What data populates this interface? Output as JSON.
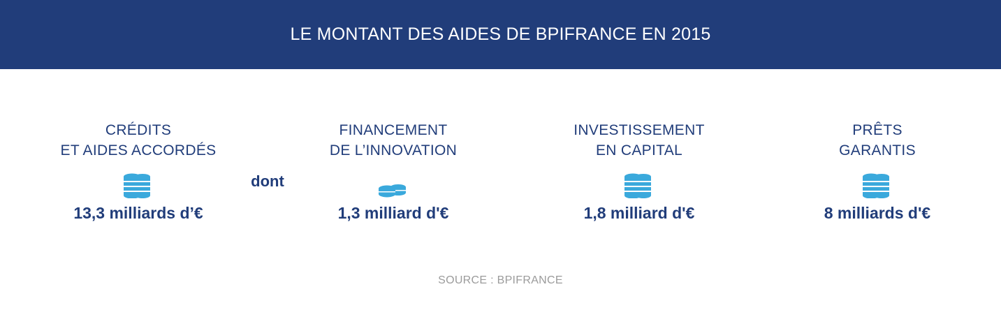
{
  "header": {
    "title": "LE MONTANT DES AIDES DE BPIFRANCE EN 2015"
  },
  "connector": "dont",
  "items": [
    {
      "line1": "CRÉDITS",
      "line2": "ET AIDES ACCORDÉS",
      "value": "13,3 milliards d’€",
      "icon": "coins-stack-icon"
    },
    {
      "line1": "FINANCEMENT",
      "line2": "DE L’INNOVATION",
      "value": "1,3 milliard d'€",
      "icon": "coins-small-icon"
    },
    {
      "line1": "INVESTISSEMENT",
      "line2": "EN CAPITAL",
      "value": "1,8 milliard d'€",
      "icon": "coins-stack-icon"
    },
    {
      "line1": "PRÊTS",
      "line2": "GARANTIS",
      "value": "8 milliards d'€",
      "icon": "coins-stack-icon"
    }
  ],
  "source": "SOURCE : BPIFRANCE",
  "colors": {
    "header_bg": "#213d7a",
    "text": "#213d7a",
    "icon": "#3aa9dc",
    "source": "#9b9b9b"
  }
}
